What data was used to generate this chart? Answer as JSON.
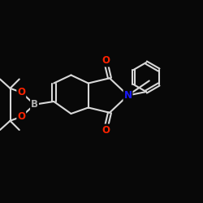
{
  "bg_color": "#080808",
  "bond_color": "#d8d8d8",
  "atom_colors": {
    "O": "#ff2200",
    "N": "#1a1aff",
    "B": "#b0b0b0"
  },
  "bond_width": 1.5,
  "font_size_atom": 8.5
}
